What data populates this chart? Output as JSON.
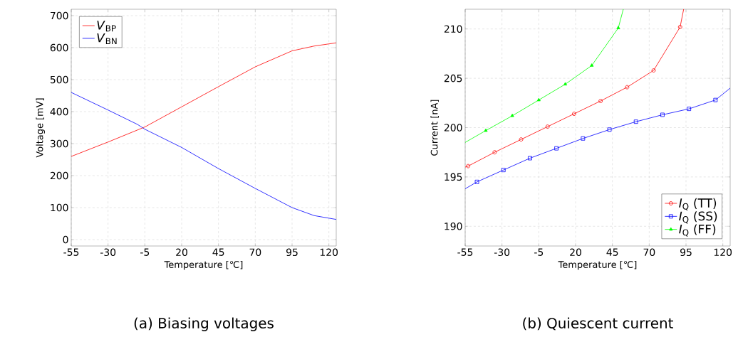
{
  "chart_data": [
    {
      "type": "line",
      "title": "(a) Biasing voltages",
      "xlabel": "Temperature [℃]",
      "ylabel": "Voltage [mV]",
      "xlim": [
        -55,
        125
      ],
      "ylim": [
        -20,
        720
      ],
      "xticks": [
        -55,
        -30,
        -5,
        20,
        45,
        70,
        95,
        120
      ],
      "yticks": [
        0,
        100,
        200,
        300,
        400,
        500,
        600,
        700
      ],
      "grid": true,
      "legend": "top left",
      "marker": "none",
      "series": [
        {
          "name": "*V*$_{BP}$",
          "color": "#ff0000",
          "x": [
            -55,
            -30,
            -5,
            20,
            45,
            70,
            95,
            110,
            125
          ],
          "values": [
            260,
            305,
            352,
            415,
            478,
            540,
            590,
            605,
            615
          ]
        },
        {
          "name": "*V*$_{BN}$",
          "color": "#0000ff",
          "x": [
            -55,
            -30,
            -10,
            -5,
            20,
            45,
            70,
            95,
            110,
            125
          ],
          "values": [
            460,
            405,
            360,
            345,
            288,
            222,
            160,
            100,
            75,
            63
          ]
        }
      ]
    },
    {
      "type": "line",
      "title": "(b) Quiescent current",
      "xlabel": "Temperature [℃]",
      "ylabel": "Current [nA]",
      "xlim": [
        -55,
        125
      ],
      "ylim": [
        188,
        212
      ],
      "xticks": [
        -55,
        -30,
        -5,
        20,
        45,
        70,
        95,
        120
      ],
      "yticks": [
        190,
        195,
        200,
        205,
        210
      ],
      "grid": true,
      "legend": "bottom right",
      "series": [
        {
          "name": "*I*$_{Q}$ (TT)",
          "color": "#ff0000",
          "marker": "circle",
          "x": [
            -55,
            -53,
            -35,
            -17,
            1,
            19,
            37,
            55,
            73,
            91,
            93.4
          ],
          "values": [
            196.0,
            196.1,
            197.5,
            198.8,
            200.1,
            201.4,
            202.7,
            204.1,
            205.8,
            210.2,
            212
          ]
        },
        {
          "name": "*I*$_{Q}$ (SS)",
          "color": "#0000ff",
          "marker": "square",
          "x": [
            -55,
            -47,
            -29,
            -11,
            7,
            25,
            43,
            61,
            79,
            97,
            115,
            125
          ],
          "values": [
            193.8,
            194.5,
            195.7,
            196.9,
            197.9,
            198.9,
            199.8,
            200.6,
            201.3,
            201.9,
            202.8,
            204.0
          ]
        },
        {
          "name": "*I*$_{Q}$ (FF)",
          "color": "#00ff00",
          "marker": "triangle",
          "x": [
            -55,
            -41,
            -23,
            -5,
            13,
            31,
            49,
            52.4
          ],
          "values": [
            198.5,
            199.7,
            201.2,
            202.8,
            204.4,
            206.3,
            210.1,
            212
          ]
        }
      ]
    }
  ]
}
